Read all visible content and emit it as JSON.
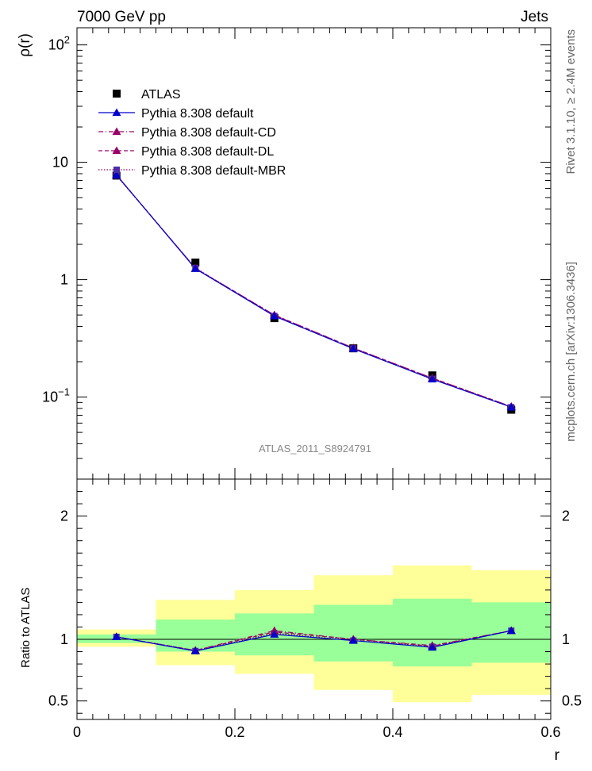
{
  "header": {
    "left": "7000 GeV pp",
    "right": "Jets"
  },
  "side_labels": {
    "rivet": "Rivet 3.1.10, ≥ 2.4M events",
    "mcplots": "mcplots.cern.ch [arXiv:1306.3436]"
  },
  "analysis_label": "ATLAS_2011_S8924791",
  "colors": {
    "band_inner": "#99ff99",
    "band_outer": "#ffff99",
    "series_default": "#0000cc",
    "series_variants": "#990066"
  },
  "chart_data": [
    {
      "type": "line",
      "panel": "main",
      "yscale": "log",
      "ylabel": "ρ(r)",
      "xlim": [
        0,
        0.6
      ],
      "ylim": [
        0.02,
        140
      ],
      "y_ticks": [
        {
          "value": 0.1,
          "label": "10",
          "sup": "−1"
        },
        {
          "value": 1,
          "label": "1",
          "sup": ""
        },
        {
          "value": 10,
          "label": "10",
          "sup": ""
        },
        {
          "value": 100,
          "label": "10",
          "sup": "2"
        }
      ],
      "x": [
        0.05,
        0.15,
        0.25,
        0.35,
        0.45,
        0.55
      ],
      "data": {
        "name": "ATLAS",
        "values": [
          7.7,
          1.4,
          0.47,
          0.26,
          0.153,
          0.078
        ]
      },
      "series": [
        {
          "name": "Pythia 8.308 default",
          "style": "solid",
          "marker": "triangle",
          "values": [
            7.8,
            1.24,
            0.49,
            0.258,
            0.142,
            0.082
          ]
        },
        {
          "name": "Pythia 8.308 default-CD",
          "style": "dashdot",
          "marker": "triangle",
          "values": [
            7.8,
            1.25,
            0.5,
            0.262,
            0.145,
            0.083
          ]
        },
        {
          "name": "Pythia 8.308 default-DL",
          "style": "dashed",
          "marker": "triangle",
          "values": [
            7.8,
            1.25,
            0.5,
            0.262,
            0.145,
            0.083
          ]
        },
        {
          "name": "Pythia 8.308 default-MBR",
          "style": "dotted",
          "marker": "square",
          "values": [
            7.7,
            1.26,
            0.49,
            0.259,
            0.143,
            0.082
          ]
        }
      ]
    },
    {
      "type": "line",
      "panel": "ratio",
      "xlabel": "r",
      "ylabel": "Ratio to ATLAS",
      "xlim": [
        0,
        0.6
      ],
      "ylim": [
        0.35,
        2.3
      ],
      "x_ticks": [
        0,
        0.2,
        0.4,
        0.6
      ],
      "y_ticks": [
        0.5,
        1,
        2
      ],
      "bins": [
        [
          0.0,
          0.1
        ],
        [
          0.1,
          0.2
        ],
        [
          0.2,
          0.3
        ],
        [
          0.3,
          0.4
        ],
        [
          0.4,
          0.5
        ],
        [
          0.5,
          0.6
        ]
      ],
      "band_inner": [
        [
          0.97,
          1.04
        ],
        [
          0.9,
          1.16
        ],
        [
          0.87,
          1.21
        ],
        [
          0.82,
          1.28
        ],
        [
          0.78,
          1.33
        ],
        [
          0.81,
          1.3
        ]
      ],
      "band_outer": [
        [
          0.94,
          1.08
        ],
        [
          0.79,
          1.32
        ],
        [
          0.72,
          1.4
        ],
        [
          0.59,
          1.52
        ],
        [
          0.49,
          1.6
        ],
        [
          0.55,
          1.56
        ]
      ],
      "x": [
        0.05,
        0.15,
        0.25,
        0.35,
        0.45,
        0.55
      ],
      "series": [
        {
          "name": "Pythia 8.308 default",
          "values": [
            1.02,
            0.905,
            1.04,
            0.99,
            0.935,
            1.07
          ]
        },
        {
          "name": "Pythia 8.308 default-CD",
          "values": [
            1.02,
            0.91,
            1.07,
            1.0,
            0.95,
            1.07
          ]
        },
        {
          "name": "Pythia 8.308 default-DL",
          "values": [
            1.02,
            0.91,
            1.06,
            1.0,
            0.945,
            1.07
          ]
        },
        {
          "name": "Pythia 8.308 default-MBR",
          "values": [
            1.02,
            0.905,
            1.05,
            0.99,
            0.94,
            1.07
          ]
        }
      ]
    }
  ]
}
